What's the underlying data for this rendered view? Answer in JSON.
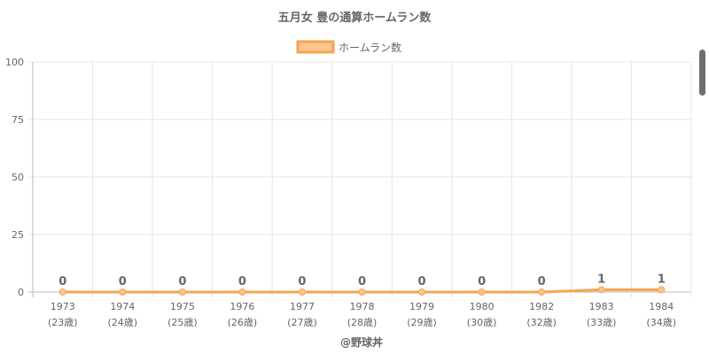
{
  "chart_data": {
    "type": "line",
    "title": "五月女 豊の通算ホームラン数",
    "categories": [
      "1973",
      "1974",
      "1975",
      "1976",
      "1977",
      "1978",
      "1979",
      "1980",
      "1982",
      "1983",
      "1984"
    ],
    "sub_labels": [
      "(23歳)",
      "(24歳)",
      "(25歳)",
      "(26歳)",
      "(27歳)",
      "(28歳)",
      "(29歳)",
      "(30歳)",
      "(32歳)",
      "(33歳)",
      "(34歳)"
    ],
    "series": [
      {
        "name": "ホームラン数",
        "values": [
          0,
          0,
          0,
          0,
          0,
          0,
          0,
          0,
          0,
          1,
          1
        ]
      }
    ],
    "ylim": [
      0,
      100
    ],
    "yticks": [
      0,
      25,
      50,
      75,
      100
    ],
    "grid": true,
    "legend_position": "top",
    "colors": {
      "line": "#f5a552",
      "fill": "#f9c58d",
      "point": "#f9c58d"
    }
  },
  "footer": "@野球丼"
}
